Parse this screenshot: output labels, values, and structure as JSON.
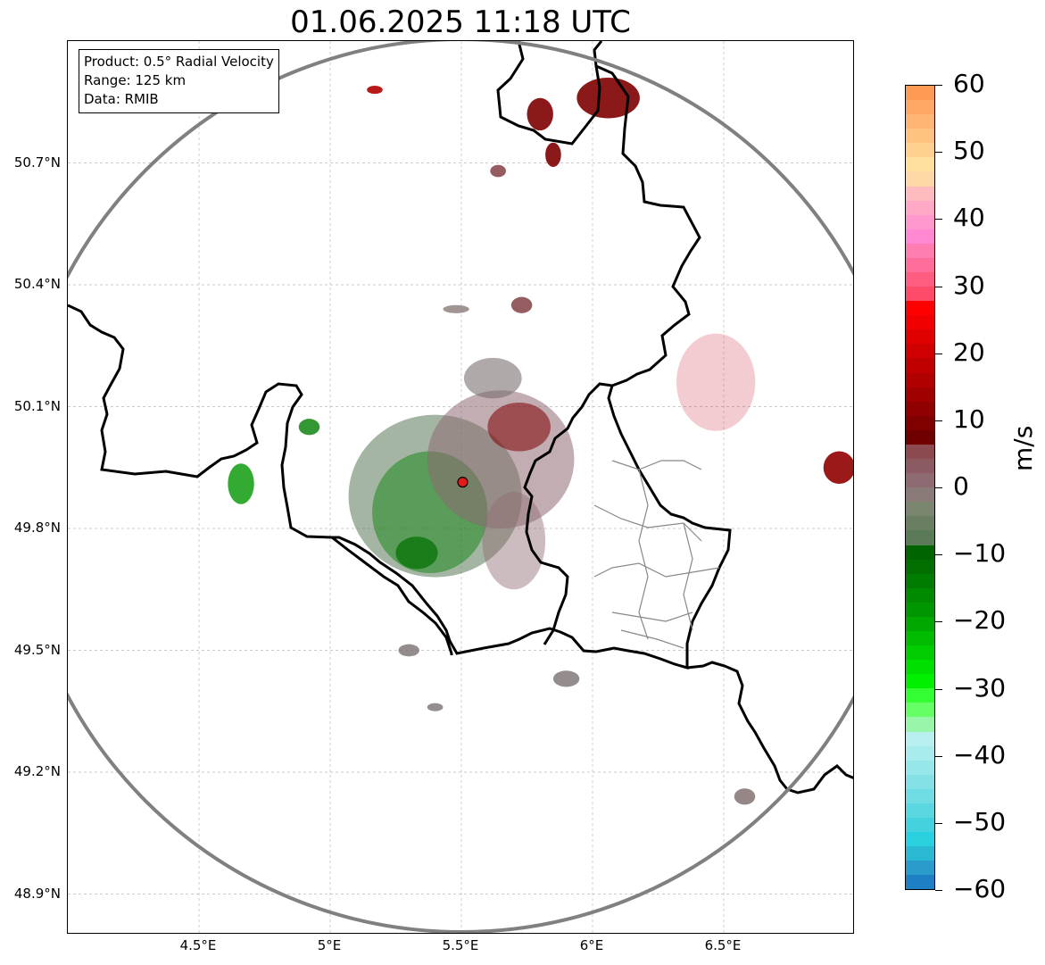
{
  "title": "01.06.2025 11:18 UTC",
  "info": {
    "product": "Product: 0.5° Radial Velocity",
    "range": "Range: 125 km",
    "source": "Data: RMIB"
  },
  "map": {
    "extent": {
      "lon": [
        4.0,
        7.0
      ],
      "lat": [
        48.8,
        51.0
      ]
    },
    "radar_site": {
      "lon": 5.505,
      "lat": 49.914
    },
    "lat_ticks": [
      "50.7°N",
      "50.4°N",
      "50.1°N",
      "49.8°N",
      "49.5°N",
      "49.2°N",
      "48.9°N"
    ],
    "lat_values": [
      50.7,
      50.4,
      50.1,
      49.8,
      49.5,
      49.2,
      48.9
    ],
    "lon_ticks": [
      "4.5°E",
      "5°E",
      "5.5°E",
      "6°E",
      "6.5°E"
    ],
    "lon_values": [
      4.5,
      5.0,
      5.5,
      6.0,
      6.5
    ],
    "colors": {
      "range_ring": "#808080",
      "border": "#000000",
      "admin": "#808080",
      "radar_marker": "#e31a1c"
    }
  },
  "colorbar": {
    "label": "m/s",
    "min": -60,
    "max": 60,
    "ticks": [
      "60",
      "50",
      "40",
      "30",
      "20",
      "10",
      "0",
      "−10",
      "−20",
      "−30",
      "−40",
      "−50",
      "−60"
    ],
    "tick_values": [
      60,
      50,
      40,
      30,
      20,
      10,
      0,
      -10,
      -20,
      -30,
      -40,
      -50,
      -60
    ],
    "bands_top_to_bottom": [
      "#ff9a55",
      "#ffa764",
      "#ffb573",
      "#ffc27f",
      "#ffd08e",
      "#ffe09c",
      "#ffd8a8",
      "#ffbcc0",
      "#ffa9c6",
      "#ff98cc",
      "#ff88d1",
      "#ff7db0",
      "#ff6e9a",
      "#ff5c82",
      "#ff4b6a",
      "#ff0000",
      "#f00000",
      "#e00000",
      "#d00000",
      "#c00000",
      "#b00000",
      "#a00000",
      "#900000",
      "#800000",
      "#700000",
      "#8a4a50",
      "#8c5a62",
      "#8e6a72",
      "#8a7a78",
      "#7b8670",
      "#6a7f62",
      "#5a7a58",
      "#006400",
      "#006f00",
      "#007d00",
      "#008a00",
      "#009600",
      "#00a800",
      "#00bb00",
      "#00cc00",
      "#00e000",
      "#00f000",
      "#33ff33",
      "#66ff66",
      "#99f5aa",
      "#b8f0f0",
      "#a8ecee",
      "#96e7ea",
      "#84e2e6",
      "#70dde4",
      "#5ad7e0",
      "#44d2de",
      "#2ad0de",
      "#2ab8d2",
      "#2a9ccb",
      "#1f7fc4"
    ]
  },
  "velocity_regions": [
    {
      "lon": 5.4,
      "lat": 49.88,
      "rx": 0.33,
      "ry": 0.2,
      "color": "#5a7a58",
      "opacity": 0.55
    },
    {
      "lon": 5.38,
      "lat": 49.84,
      "rx": 0.22,
      "ry": 0.15,
      "color": "#007d00",
      "opacity": 0.45
    },
    {
      "lon": 5.65,
      "lat": 49.97,
      "rx": 0.28,
      "ry": 0.17,
      "color": "#8e6a72",
      "opacity": 0.55
    },
    {
      "lon": 5.72,
      "lat": 50.05,
      "rx": 0.12,
      "ry": 0.06,
      "color": "#800000",
      "opacity": 0.55
    },
    {
      "lon": 5.62,
      "lat": 50.17,
      "rx": 0.11,
      "ry": 0.05,
      "color": "#7a7070",
      "opacity": 0.6
    },
    {
      "lon": 5.7,
      "lat": 49.77,
      "rx": 0.12,
      "ry": 0.12,
      "color": "#8e6a72",
      "opacity": 0.45
    },
    {
      "lon": 4.66,
      "lat": 49.91,
      "rx": 0.05,
      "ry": 0.05,
      "color": "#009600",
      "opacity": 0.8
    },
    {
      "lon": 4.92,
      "lat": 50.05,
      "rx": 0.04,
      "ry": 0.02,
      "color": "#007d00",
      "opacity": 0.8
    },
    {
      "lon": 5.33,
      "lat": 49.74,
      "rx": 0.08,
      "ry": 0.04,
      "color": "#006f00",
      "opacity": 0.7
    },
    {
      "lon": 5.8,
      "lat": 50.82,
      "rx": 0.05,
      "ry": 0.04,
      "color": "#800000",
      "opacity": 0.9
    },
    {
      "lon": 5.85,
      "lat": 50.72,
      "rx": 0.03,
      "ry": 0.03,
      "color": "#800000",
      "opacity": 0.9
    },
    {
      "lon": 6.06,
      "lat": 50.86,
      "rx": 0.12,
      "ry": 0.05,
      "color": "#800000",
      "opacity": 0.9
    },
    {
      "lon": 5.64,
      "lat": 50.68,
      "rx": 0.03,
      "ry": 0.015,
      "color": "#8a4a50",
      "opacity": 0.9
    },
    {
      "lon": 5.17,
      "lat": 50.88,
      "rx": 0.03,
      "ry": 0.01,
      "color": "#b00000",
      "opacity": 0.9
    },
    {
      "lon": 5.73,
      "lat": 50.35,
      "rx": 0.04,
      "ry": 0.02,
      "color": "#8a4a50",
      "opacity": 0.9
    },
    {
      "lon": 5.48,
      "lat": 50.34,
      "rx": 0.05,
      "ry": 0.01,
      "color": "#8a7a78",
      "opacity": 0.8
    },
    {
      "lon": 6.94,
      "lat": 49.95,
      "rx": 0.06,
      "ry": 0.04,
      "color": "#900000",
      "opacity": 0.9
    },
    {
      "lon": 6.58,
      "lat": 49.14,
      "rx": 0.04,
      "ry": 0.02,
      "color": "#8a7a78",
      "opacity": 0.9
    },
    {
      "lon": 5.4,
      "lat": 49.36,
      "rx": 0.03,
      "ry": 0.01,
      "color": "#7a7070",
      "opacity": 0.8
    },
    {
      "lon": 5.9,
      "lat": 49.43,
      "rx": 0.05,
      "ry": 0.02,
      "color": "#7a7070",
      "opacity": 0.8
    },
    {
      "lon": 5.3,
      "lat": 49.5,
      "rx": 0.04,
      "ry": 0.015,
      "color": "#7a7070",
      "opacity": 0.8
    },
    {
      "lon": 6.47,
      "lat": 50.16,
      "rx": 0.15,
      "ry": 0.12,
      "color": "#cc3344",
      "opacity": 0.25
    }
  ]
}
